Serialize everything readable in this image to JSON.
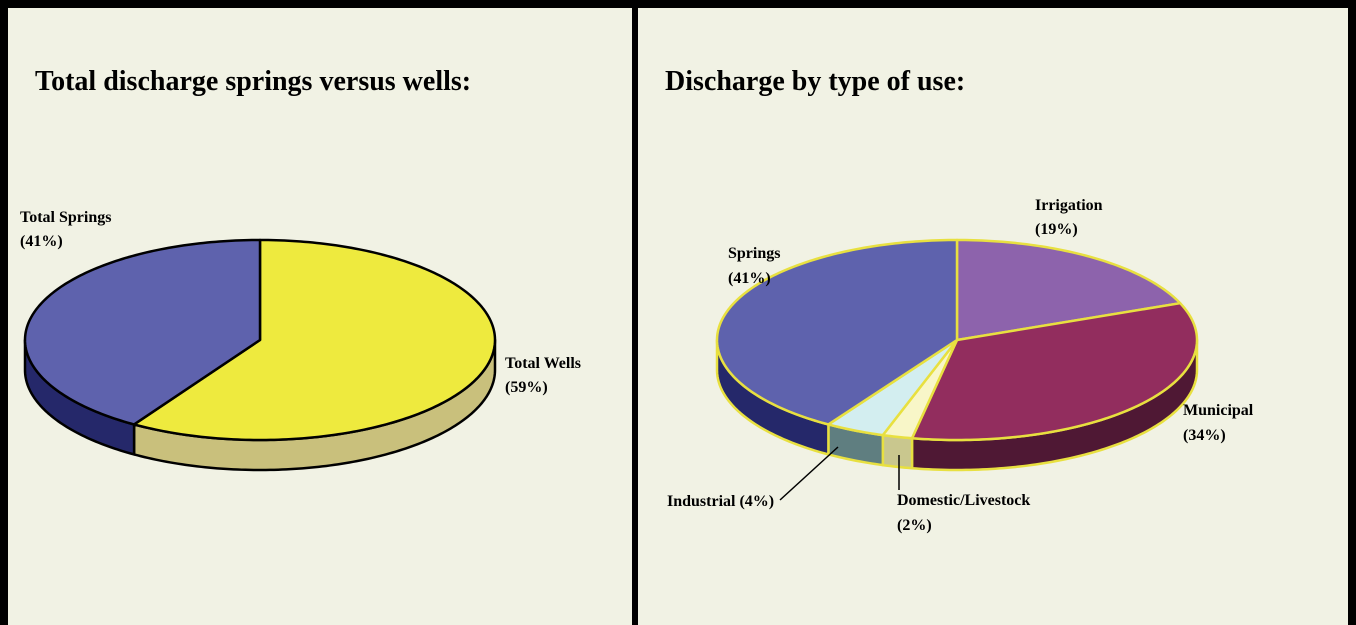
{
  "chart_data": [
    {
      "type": "pie",
      "title": "Total discharge springs versus wells:",
      "categories": [
        "Total Wells",
        "Total Springs"
      ],
      "values": [
        59,
        41
      ],
      "value_labels": [
        "(59%)",
        "(41%)"
      ],
      "colors": [
        "#eeea3e",
        "#5e62ad"
      ],
      "side_colors": [
        "#c9c07c",
        "#25286a"
      ],
      "edge_color": "#000000"
    },
    {
      "type": "pie",
      "title": "Discharge by type of use:",
      "categories": [
        "Irrigation",
        "Municipal",
        "Domestic/Livestock",
        "Industrial",
        "Springs"
      ],
      "values": [
        19,
        34,
        2,
        4,
        41
      ],
      "value_labels": [
        "(19%)",
        "(34%)",
        "(2%)",
        "(4%)",
        "(41%)"
      ],
      "colors": [
        "#8d63ac",
        "#922d5e",
        "#f8f6c8",
        "#d3eef0",
        "#5e62ad"
      ],
      "side_colors": [
        "#5a3c72",
        "#4f1834",
        "#c9c78e",
        "#5f7e80",
        "#25286a"
      ],
      "edge_color": "#e8e040"
    }
  ]
}
